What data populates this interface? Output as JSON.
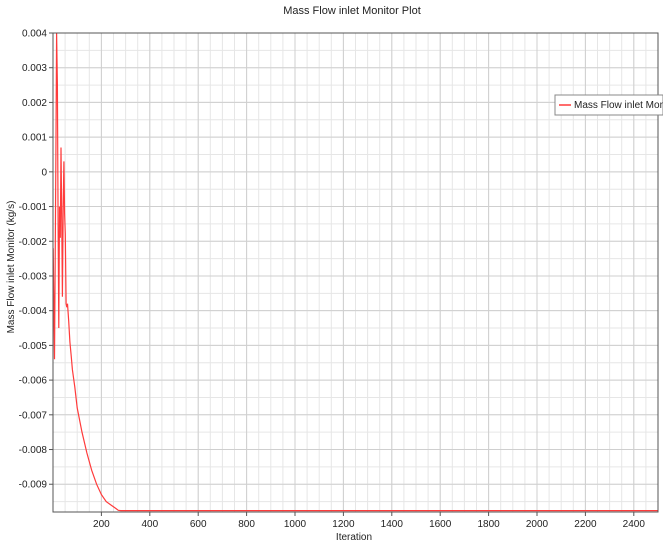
{
  "chart_data": {
    "type": "line",
    "title": "Mass Flow inlet Monitor Plot",
    "xlabel": "Iteration",
    "ylabel": "Mass Flow inlet Monitor (kg/s)",
    "xlim": [
      0,
      2500
    ],
    "ylim": [
      -0.0098,
      0.004
    ],
    "x_ticks": [
      200,
      400,
      600,
      800,
      1000,
      1200,
      1400,
      1600,
      1800,
      2000,
      2200,
      2400
    ],
    "x_tick_labels": [
      "200",
      "400",
      "600",
      "800",
      "1000",
      "1200",
      "1400",
      "1600",
      "1800",
      "2000",
      "2200",
      "2400"
    ],
    "y_ticks": [
      0.004,
      0.003,
      0.002,
      0.001,
      0,
      -0.001,
      -0.002,
      -0.003,
      -0.004,
      -0.005,
      -0.006,
      -0.007,
      -0.008,
      -0.009
    ],
    "y_tick_labels": [
      "0.004",
      "0.003",
      "0.002",
      "0.001",
      "0",
      "-0.001",
      "-0.002",
      "-0.003",
      "-0.004",
      "-0.005",
      "-0.006",
      "-0.007",
      "-0.008",
      "-0.009"
    ],
    "grid": true,
    "legend_position": "top-right",
    "series": [
      {
        "name": "Mass Flow inlet Monitor",
        "color": "#ff3b3b",
        "x": [
          1,
          3,
          6,
          9,
          12,
          15,
          18,
          21,
          24,
          27,
          30,
          33,
          36,
          39,
          42,
          45,
          48,
          51,
          54,
          57,
          60,
          65,
          70,
          75,
          80,
          90,
          100,
          120,
          140,
          160,
          180,
          200,
          220,
          240,
          260,
          270,
          280,
          300,
          400,
          600,
          800,
          1000,
          1500,
          2000,
          2500
        ],
        "y": [
          -0.0022,
          -0.0035,
          -0.0054,
          -0.0025,
          0.0005,
          0.004,
          0.0025,
          -0.0015,
          -0.0045,
          -0.001,
          -0.0019,
          0.0007,
          -0.0012,
          -0.0036,
          -0.001,
          0.0003,
          -0.0012,
          -0.0018,
          -0.0038,
          -0.0039,
          -0.0038,
          -0.0043,
          -0.0049,
          -0.0053,
          -0.0057,
          -0.0062,
          -0.0068,
          -0.0075,
          -0.0081,
          -0.0086,
          -0.009,
          -0.0093,
          -0.0095,
          -0.0096,
          -0.0097,
          -0.00975,
          -0.00976,
          -0.00976,
          -0.00976,
          -0.00976,
          -0.00976,
          -0.00976,
          -0.00976,
          -0.00976,
          -0.00976
        ]
      }
    ]
  }
}
